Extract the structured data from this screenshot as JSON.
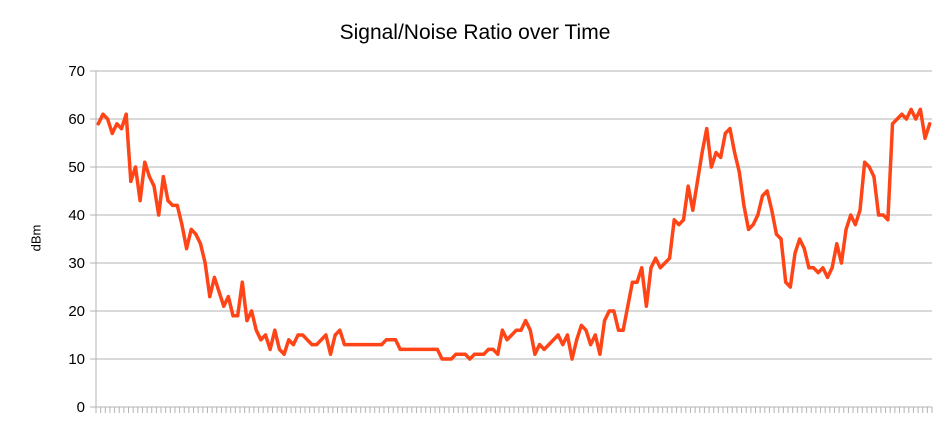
{
  "chart_data": {
    "type": "line",
    "title": "Signal/Noise Ratio over Time",
    "xlabel": "",
    "ylabel": "dBm",
    "ylim": [
      0,
      70
    ],
    "yticks": [
      0,
      10,
      20,
      30,
      40,
      50,
      60,
      70
    ],
    "grid": true,
    "legend": "none",
    "series_color": "#ff4517",
    "gridline_color": "#b3b3b3",
    "series": [
      {
        "values": [
          59,
          61,
          60,
          57,
          59,
          58,
          61,
          47,
          50,
          43,
          51,
          48,
          46,
          40,
          48,
          43,
          42,
          42,
          38,
          33,
          37,
          36,
          34,
          30,
          23,
          27,
          24,
          21,
          23,
          19,
          19,
          26,
          18,
          20,
          16,
          14,
          15,
          12,
          16,
          12,
          11,
          14,
          13,
          15,
          15,
          14,
          13,
          13,
          14,
          15,
          11,
          15,
          16,
          13,
          13,
          13,
          13,
          13,
          13,
          13,
          13,
          13,
          14,
          14,
          14,
          12,
          12,
          12,
          12,
          12,
          12,
          12,
          12,
          12,
          10,
          10,
          10,
          11,
          11,
          11,
          10,
          11,
          11,
          11,
          12,
          12,
          11,
          16,
          14,
          15,
          16,
          16,
          18,
          16,
          11,
          13,
          12,
          13,
          14,
          15,
          13,
          15,
          10,
          14,
          17,
          16,
          13,
          15,
          11,
          18,
          20,
          20,
          16,
          16,
          21,
          26,
          26,
          29,
          21,
          29,
          31,
          29,
          30,
          31,
          39,
          38,
          39,
          46,
          41,
          47,
          53,
          58,
          50,
          53,
          52,
          57,
          58,
          53,
          49,
          42,
          37,
          38,
          40,
          44,
          45,
          41,
          36,
          35,
          26,
          25,
          32,
          35,
          33,
          29,
          29,
          28,
          29,
          27,
          29,
          34,
          30,
          37,
          40,
          38,
          41,
          51,
          50,
          48,
          40,
          40,
          39,
          59,
          60,
          61,
          60,
          62,
          60,
          62,
          56,
          59
        ]
      }
    ]
  }
}
